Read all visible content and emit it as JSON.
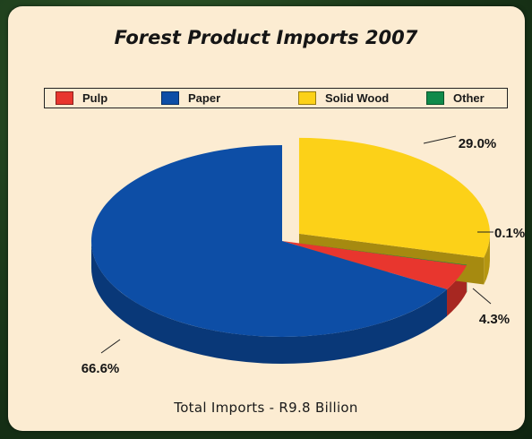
{
  "chart_data": {
    "type": "pie",
    "title": "Forest Product Imports 2007",
    "categories": [
      "Pulp",
      "Paper",
      "Solid Wood",
      "Other"
    ],
    "values": [
      4.3,
      66.6,
      29.0,
      0.1
    ],
    "value_labels": [
      "4.3%",
      "66.6%",
      "29.0%",
      "0.1%"
    ],
    "colors": [
      "#e8362e",
      "#0d4ea6",
      "#fcd118",
      "#0f8a4a"
    ],
    "exploded": "Solid Wood",
    "legend_position": "top",
    "note": "Total Imports - R9.8 Billion"
  }
}
